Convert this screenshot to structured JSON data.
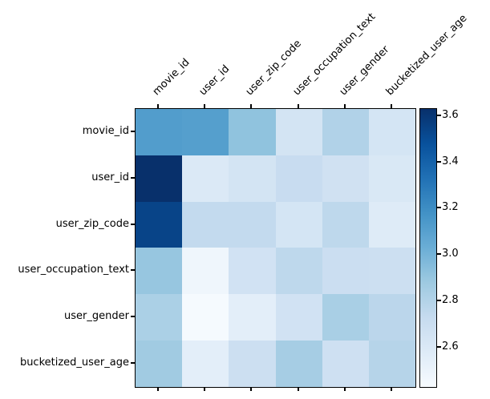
{
  "figure": {
    "background_color": "#ffffff",
    "text_color": "#000000",
    "axes_border_color": "#000000"
  },
  "chart_data": {
    "type": "heatmap",
    "title": "",
    "xlabel": "",
    "ylabel": "",
    "grid": false,
    "rows": [
      "movie_id",
      "user_id",
      "user_zip_code",
      "user_occupation_text",
      "user_gender",
      "bucketized_user_age"
    ],
    "columns": [
      "movie_id",
      "user_id",
      "user_zip_code",
      "user_occupation_text",
      "user_gender",
      "bucketized_user_age"
    ],
    "values": [
      [
        3.12,
        3.11,
        2.92,
        2.65,
        2.81,
        2.64
      ],
      [
        3.63,
        2.6,
        2.65,
        2.72,
        2.67,
        2.61
      ],
      [
        3.54,
        2.74,
        2.74,
        2.64,
        2.76,
        2.58
      ],
      [
        2.9,
        2.48,
        2.66,
        2.76,
        2.7,
        2.69
      ],
      [
        2.83,
        2.44,
        2.55,
        2.66,
        2.84,
        2.77
      ],
      [
        2.87,
        2.55,
        2.69,
        2.85,
        2.68,
        2.79
      ]
    ],
    "scale_min": 2.43,
    "scale_max": 3.63,
    "colormap": {
      "name": "Blues",
      "stops": [
        [
          0.0,
          "#f7fbff"
        ],
        [
          0.125,
          "#deebf7"
        ],
        [
          0.25,
          "#c6dbef"
        ],
        [
          0.375,
          "#9ecae1"
        ],
        [
          0.5,
          "#6baed6"
        ],
        [
          0.625,
          "#4292c6"
        ],
        [
          0.75,
          "#2171b5"
        ],
        [
          0.875,
          "#08519c"
        ],
        [
          1.0,
          "#08306b"
        ]
      ]
    },
    "colorbar": {
      "position": "right",
      "tick_values": [
        3.6,
        3.4,
        3.2,
        3.0,
        2.8,
        2.6
      ],
      "tick_labels": [
        "3.6",
        "3.4",
        "3.2",
        "3.0",
        "2.8",
        "2.6"
      ]
    },
    "legend": null
  }
}
